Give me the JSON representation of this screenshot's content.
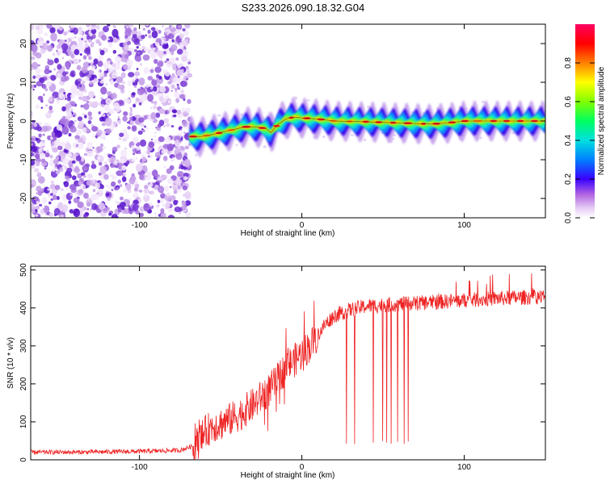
{
  "title": "S233.2026.090.18.32.G04",
  "chart_data": [
    {
      "type": "heatmap",
      "xlabel": "Height of straight line (km)",
      "ylabel": "Frequency (Hz)",
      "xlim": [
        -167,
        150
      ],
      "ylim": [
        -25,
        25
      ],
      "x_ticks": [
        -100,
        0,
        100
      ],
      "y_ticks": [
        -20,
        -10,
        0,
        10,
        20
      ],
      "noise_region_x": [
        -167,
        -69
      ],
      "ridge_x": [
        -69,
        -62,
        -55,
        -45,
        -35,
        -28,
        -22,
        -19,
        -15,
        -10,
        -5,
        0,
        10,
        20,
        40,
        60,
        80,
        90,
        100,
        120,
        140,
        150
      ],
      "ridge_freq": [
        -4,
        -4,
        -3.5,
        -2.5,
        -1.5,
        -1.5,
        -2,
        -3,
        -1,
        0.5,
        1,
        0.8,
        0.5,
        0,
        -0.2,
        -0.5,
        -0.8,
        -0.5,
        0,
        0,
        0,
        0
      ],
      "colorbar": {
        "label": "Normalized spectral amplitude",
        "ticks": [
          "0.0",
          "0.2",
          "0.4",
          "0.6",
          "0.8"
        ]
      }
    },
    {
      "type": "line",
      "xlabel": "Height of straight line (km)",
      "ylabel": "SNR (10 * v/v)",
      "xlim": [
        -167,
        150
      ],
      "ylim": [
        0,
        510
      ],
      "x_ticks": [
        -100,
        0,
        100
      ],
      "y_ticks": [
        0,
        100,
        200,
        300,
        400,
        500
      ],
      "series": [
        {
          "name": "SNR",
          "x": [
            -167,
            -140,
            -100,
            -75,
            -65,
            -60,
            -55,
            -50,
            -40,
            -30,
            -20,
            -15,
            -10,
            -5,
            0,
            5,
            10,
            15,
            20,
            30,
            40,
            60,
            80,
            100,
            120,
            150
          ],
          "values": [
            20,
            20,
            22,
            25,
            40,
            70,
            90,
            95,
            115,
            145,
            185,
            210,
            245,
            260,
            280,
            300,
            330,
            360,
            380,
            395,
            405,
            410,
            415,
            420,
            425,
            430
          ]
        }
      ],
      "dropout_range_x": [
        25,
        70
      ],
      "dropout_value": 40
    }
  ]
}
